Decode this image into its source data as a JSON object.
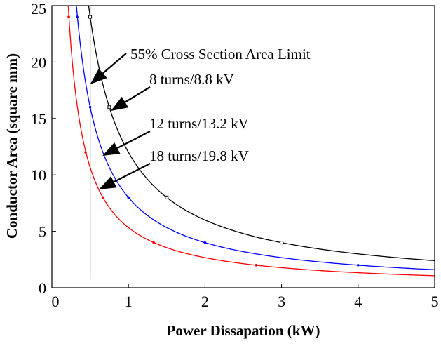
{
  "chart_data": {
    "type": "line",
    "xlabel": "Power Dissapation (kW)",
    "ylabel": "Conductor Area (square mm)",
    "xlim": [
      0,
      5
    ],
    "ylim": [
      0,
      25
    ],
    "x_ticks": [
      "0",
      "1",
      "2",
      "3",
      "4",
      "5"
    ],
    "y_ticks": [
      "0",
      "5",
      "10",
      "15",
      "20",
      "25"
    ],
    "grid": false,
    "series": [
      {
        "name": "8 turns/8.8 kV",
        "color": "#000000",
        "marker": "square-open",
        "k": 12.0,
        "x_range": [
          0.47,
          5
        ],
        "points": [
          [
            0.5,
            24.0
          ],
          [
            0.75,
            16.0
          ],
          [
            1.5,
            8.0
          ],
          [
            3.0,
            4.0
          ]
        ]
      },
      {
        "name": "12 turns/13.2 kV",
        "color": "#0000ff",
        "marker": "dot",
        "k": 8.0,
        "x_range": [
          0.32,
          5
        ],
        "points": [
          [
            0.33,
            24.0
          ],
          [
            0.5,
            16.0
          ],
          [
            1.0,
            8.0
          ],
          [
            2.0,
            4.0
          ],
          [
            4.0,
            2.0
          ]
        ]
      },
      {
        "name": "18 turns/19.8 kV",
        "color": "#ff0000",
        "marker": "dot",
        "k": 5.33,
        "x_range": [
          0.21,
          5
        ],
        "points": [
          [
            0.22,
            24.0
          ],
          [
            0.44,
            12.0
          ],
          [
            0.67,
            8.0
          ],
          [
            1.33,
            4.0
          ],
          [
            2.67,
            2.0
          ]
        ]
      }
    ],
    "limit_line": {
      "label": "55% Cross Section Area Limit",
      "x": 0.5,
      "y_range": [
        0,
        25
      ]
    },
    "annotations": [
      {
        "text": "55% Cross Section Area Limit",
        "target_series": "limit"
      },
      {
        "text": "8 turns/8.8 kV",
        "target_series": "8 turns/8.8 kV"
      },
      {
        "text": "12 turns/13.2 kV",
        "target_series": "12 turns/13.2 kV"
      },
      {
        "text": "18 turns/19.8 kV",
        "target_series": "18 turns/19.8 kV"
      }
    ]
  }
}
